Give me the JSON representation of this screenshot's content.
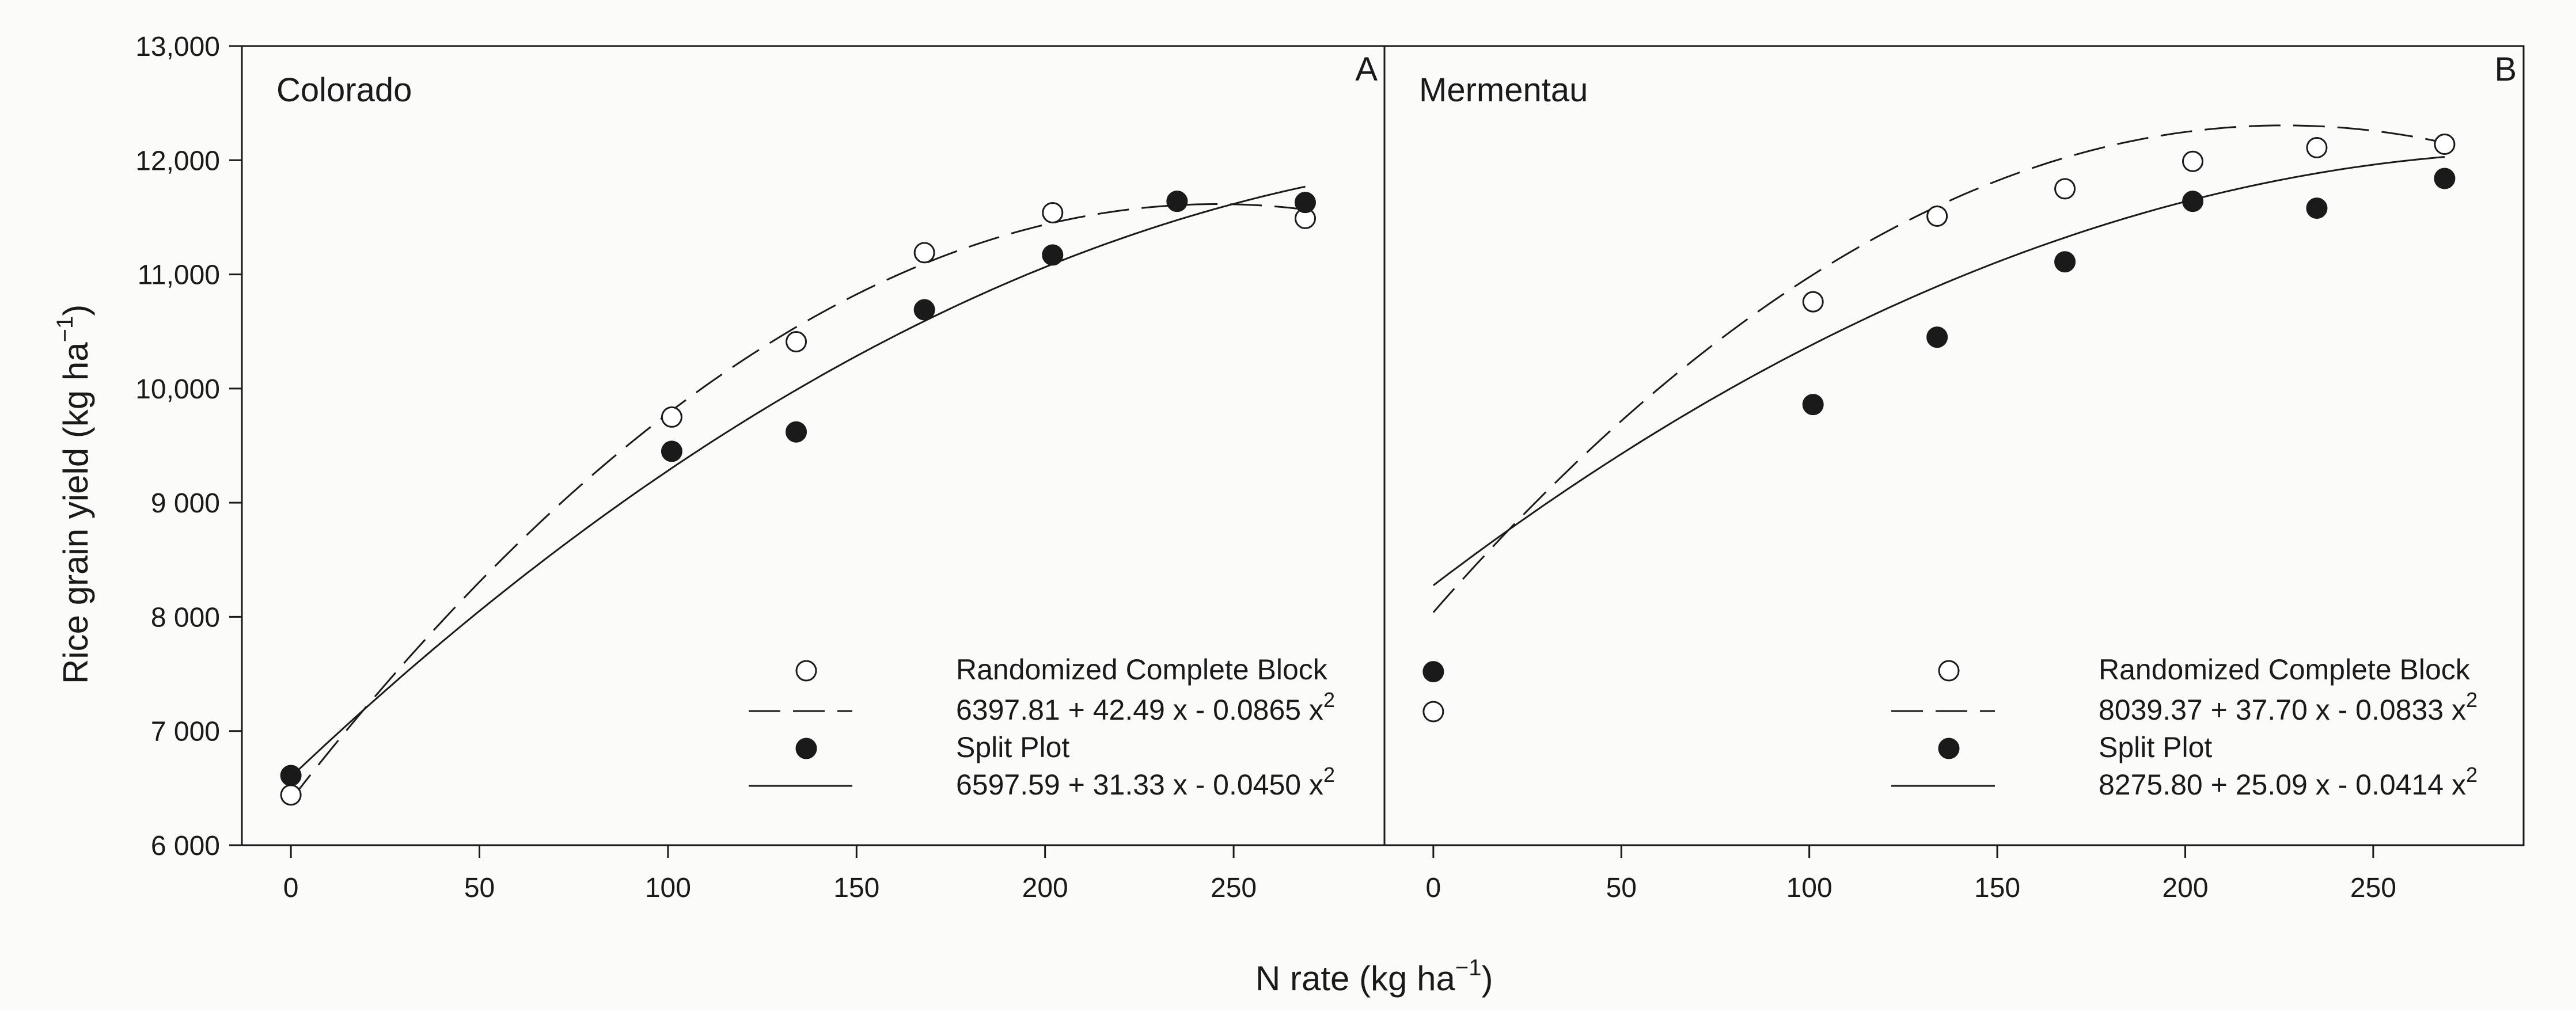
{
  "chart_data": {
    "type": "scatter",
    "ylabel": "Rice grain yield (kg ha",
    "ylabel_unit_exp": "−1",
    "xlabel": "N rate (kg ha",
    "xlabel_unit_exp": "−1",
    "ylim": [
      6000,
      13000
    ],
    "xlim": [
      -13,
      290
    ],
    "y_ticks": [
      {
        "v": 6000,
        "label": "6 000"
      },
      {
        "v": 7000,
        "label": "7 000"
      },
      {
        "v": 8000,
        "label": "8 000"
      },
      {
        "v": 9000,
        "label": "9 000"
      },
      {
        "v": 10000,
        "label": "10,000"
      },
      {
        "v": 11000,
        "label": "11,000"
      },
      {
        "v": 12000,
        "label": "12,000"
      },
      {
        "v": 13000,
        "label": "13,000"
      }
    ],
    "x_ticks": [
      {
        "v": 0,
        "label": "0"
      },
      {
        "v": 50,
        "label": "50"
      },
      {
        "v": 100,
        "label": "100"
      },
      {
        "v": 150,
        "label": "150"
      },
      {
        "v": 200,
        "label": "200"
      },
      {
        "v": 250,
        "label": "250"
      }
    ],
    "panels": [
      {
        "name": "Colorado",
        "letter": "A",
        "series": [
          {
            "name": "Randomized Complete Block",
            "marker": "open-circle",
            "line": "dashed",
            "x": [
              0,
              101,
              134,
              168,
              202,
              235,
              269
            ],
            "y": [
              6440,
              9750,
              10410,
              11190,
              11540,
              11640,
              11490
            ],
            "fit": {
              "label": "6397.81 + 42.49 x - 0.0865 x",
              "exp": "2",
              "a": 6397.81,
              "b": 42.49,
              "c": -0.0865
            }
          },
          {
            "name": "Split Plot",
            "marker": "filled-circle",
            "line": "solid",
            "x": [
              0,
              101,
              134,
              168,
              202,
              235,
              269
            ],
            "y": [
              6610,
              9450,
              9620,
              10690,
              11170,
              11640,
              11630
            ],
            "fit": {
              "label": "6597.59 + 31.33 x - 0.0450 x",
              "exp": "2",
              "a": 6597.59,
              "b": 31.33,
              "c": -0.045
            }
          }
        ]
      },
      {
        "name": "Mermentau",
        "letter": "B",
        "series": [
          {
            "name": "Randomized Complete Block",
            "marker": "open-circle",
            "line": "dashed",
            "x": [
              0,
              101,
              134,
              168,
              202,
              235,
              269
            ],
            "y": [
              7170,
              10760,
              11510,
              11750,
              11990,
              12110,
              12140
            ],
            "fit": {
              "label": "8039.37 + 37.70 x - 0.0833 x",
              "exp": "2",
              "a": 8039.37,
              "b": 37.7,
              "c": -0.0833
            }
          },
          {
            "name": "Split Plot",
            "marker": "filled-circle",
            "line": "solid",
            "x": [
              0,
              101,
              134,
              168,
              202,
              235,
              269
            ],
            "y": [
              7520,
              9860,
              10450,
              11110,
              11640,
              11580,
              11840
            ],
            "fit": {
              "label": "8275.80 + 25.09 x - 0.0414 x",
              "exp": "2",
              "a": 8275.8,
              "b": 25.09,
              "c": -0.0414
            }
          }
        ]
      }
    ]
  }
}
